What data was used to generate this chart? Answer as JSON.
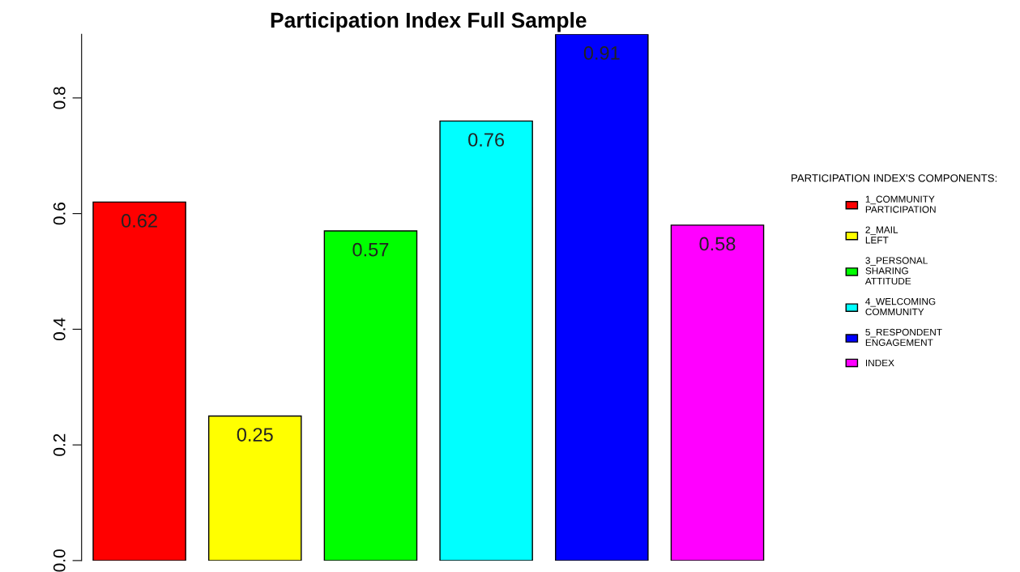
{
  "chart_data": {
    "type": "bar",
    "title": "Participation Index Full Sample",
    "categories": [
      null,
      null,
      null,
      null,
      null,
      null
    ],
    "series": [
      {
        "name": "1_COMMUNITY\nPARTICIPATION",
        "color": "#ff0000",
        "values": [
          0.62,
          null,
          null,
          null,
          null,
          null
        ]
      },
      {
        "name": "2_MAIL\nLEFT",
        "color": "#ffff00",
        "values": [
          null,
          0.25,
          null,
          null,
          null,
          null
        ]
      },
      {
        "name": "3_PERSONAL\nSHARING\nATTITUDE",
        "color": "#00ff00",
        "values": [
          null,
          null,
          0.57,
          null,
          null,
          null
        ]
      },
      {
        "name": "4_WELCOMING\nCOMMUNITY",
        "color": "#00ffff",
        "values": [
          null,
          null,
          null,
          0.76,
          null,
          null
        ]
      },
      {
        "name": "5_RESPONDENT\nENGAGEMENT",
        "color": "#0000ff",
        "values": [
          null,
          null,
          null,
          null,
          0.91,
          null
        ]
      },
      {
        "name": "INDEX",
        "color": "#ff00ff",
        "values": [
          null,
          null,
          null,
          null,
          null,
          0.58
        ]
      }
    ],
    "legend_title": "PARTICIPATION INDEX'S COMPONENTS:",
    "legend": "right",
    "ylim": [
      0,
      0.91
    ],
    "yticks": [
      {
        "value": 0,
        "label": "0.0"
      },
      0.2,
      0.4,
      0.6,
      0.8
    ],
    "data_labels": true,
    "grid": false,
    "stacked": true
  }
}
